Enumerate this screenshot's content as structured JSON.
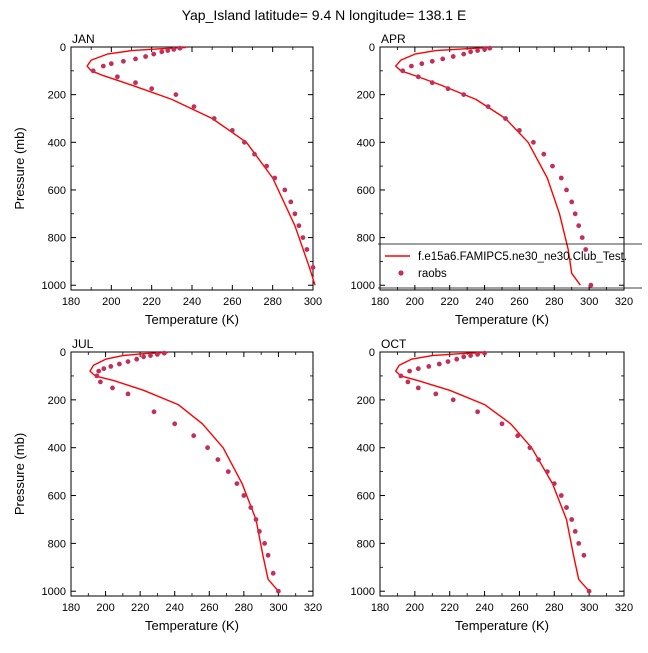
{
  "figure": {
    "title": "Yap_Island  latitude= 9.4 N longitude= 138.1 E"
  },
  "legend": {
    "model_label": "f.e15a6.FAMIPC5.ne30_ne30.Club_Test.",
    "obs_label": "raobs",
    "model_color": "#ff0000",
    "obs_color": "#c0305a"
  },
  "chart_data": [
    {
      "type": "line",
      "title": "JAN",
      "xlabel": "Temperature (K)",
      "ylabel": "Pressure (mb)",
      "xlim": [
        180,
        300
      ],
      "ylim": [
        1020,
        0
      ],
      "xticks": [
        "180",
        "200",
        "220",
        "240",
        "260",
        "280",
        "300"
      ],
      "yticks": [
        "0",
        "200",
        "400",
        "600",
        "800",
        "1000"
      ],
      "model": {
        "t": [
          237,
          225,
          210,
          198,
          190,
          188,
          190,
          196,
          210,
          230,
          250,
          267,
          280,
          291,
          298,
          301
        ],
        "p": [
          2,
          7,
          15,
          30,
          55,
          80,
          100,
          120,
          160,
          220,
          300,
          400,
          550,
          750,
          920,
          1000
        ]
      },
      "obs": {
        "t": [
          234,
          231,
          228,
          225,
          221,
          217,
          212,
          206,
          200,
          196,
          191,
          203,
          212,
          220,
          232,
          241,
          251,
          260,
          266,
          271,
          277,
          281,
          286,
          289,
          291,
          293,
          295,
          297,
          300
        ],
        "p": [
          5,
          10,
          15,
          20,
          30,
          40,
          50,
          60,
          70,
          80,
          100,
          125,
          150,
          175,
          200,
          250,
          300,
          350,
          400,
          450,
          500,
          550,
          600,
          650,
          700,
          750,
          800,
          850,
          925
        ]
      }
    },
    {
      "type": "line",
      "title": "APR",
      "xlabel": "Temperature (K)",
      "ylabel": "",
      "xlim": [
        180,
        320
      ],
      "ylim": [
        1020,
        0
      ],
      "xticks": [
        "180",
        "200",
        "220",
        "240",
        "260",
        "280",
        "300",
        "320"
      ],
      "yticks": [
        "0",
        "200",
        "400",
        "600",
        "800",
        "1000"
      ],
      "model": {
        "t": [
          244,
          230,
          212,
          200,
          192,
          189,
          192,
          200,
          215,
          235,
          252,
          265,
          276,
          283,
          288,
          290,
          295
        ],
        "p": [
          2,
          7,
          15,
          30,
          55,
          80,
          100,
          120,
          160,
          220,
          300,
          400,
          550,
          700,
          850,
          950,
          1000
        ]
      },
      "obs": {
        "t": [
          243,
          240,
          236,
          232,
          228,
          222,
          216,
          210,
          204,
          198,
          193,
          202,
          210,
          219,
          228,
          242,
          252,
          260,
          268,
          274,
          279,
          284,
          287,
          290,
          292,
          294,
          296,
          298,
          301
        ],
        "p": [
          5,
          10,
          15,
          20,
          30,
          40,
          50,
          60,
          70,
          80,
          100,
          125,
          150,
          175,
          200,
          250,
          300,
          350,
          400,
          450,
          500,
          550,
          600,
          650,
          700,
          750,
          800,
          850,
          1000
        ]
      }
    },
    {
      "type": "line",
      "title": "JUL",
      "xlabel": "Temperature (K)",
      "ylabel": "Pressure (mb)",
      "xlim": [
        180,
        320
      ],
      "ylim": [
        1020,
        0
      ],
      "xticks": [
        "180",
        "200",
        "220",
        "240",
        "260",
        "280",
        "300",
        "320"
      ],
      "yticks": [
        "0",
        "200",
        "400",
        "600",
        "800",
        "1000"
      ],
      "model": {
        "t": [
          236,
          222,
          210,
          200,
          193,
          191,
          194,
          205,
          222,
          242,
          256,
          268,
          279,
          287,
          291,
          294,
          300
        ],
        "p": [
          2,
          7,
          15,
          30,
          55,
          80,
          100,
          120,
          160,
          220,
          300,
          400,
          550,
          700,
          850,
          950,
          1000
        ]
      },
      "obs": {
        "t": [
          234,
          230,
          226,
          222,
          218,
          213,
          208,
          203,
          199,
          196,
          195,
          197,
          204,
          213,
          228,
          240,
          251,
          259,
          265,
          271,
          276,
          280,
          284,
          287,
          289,
          292,
          294,
          297,
          300
        ],
        "p": [
          5,
          10,
          15,
          20,
          30,
          40,
          50,
          60,
          70,
          80,
          100,
          125,
          150,
          175,
          250,
          300,
          350,
          400,
          450,
          500,
          550,
          600,
          650,
          700,
          750,
          800,
          850,
          925,
          1000
        ]
      }
    },
    {
      "type": "line",
      "title": "OCT",
      "xlabel": "Temperature (K)",
      "ylabel": "",
      "xlim": [
        180,
        320
      ],
      "ylim": [
        1020,
        0
      ],
      "xticks": [
        "180",
        "200",
        "220",
        "240",
        "260",
        "280",
        "300",
        "320"
      ],
      "yticks": [
        "0",
        "200",
        "400",
        "600",
        "800",
        "1000"
      ],
      "model": {
        "t": [
          240,
          226,
          210,
          198,
          191,
          189,
          192,
          202,
          220,
          240,
          255,
          267,
          279,
          287,
          291,
          294,
          300
        ],
        "p": [
          2,
          7,
          15,
          30,
          55,
          80,
          100,
          120,
          160,
          220,
          300,
          400,
          550,
          700,
          850,
          950,
          1000
        ]
      },
      "obs": {
        "t": [
          240,
          236,
          232,
          228,
          224,
          219,
          214,
          208,
          202,
          197,
          192,
          196,
          202,
          212,
          222,
          236,
          250,
          259,
          266,
          271,
          276,
          280,
          284,
          287,
          290,
          292,
          294,
          297,
          300
        ],
        "p": [
          5,
          10,
          15,
          20,
          30,
          40,
          50,
          60,
          70,
          80,
          100,
          125,
          150,
          175,
          200,
          250,
          300,
          350,
          400,
          450,
          500,
          550,
          600,
          650,
          700,
          750,
          800,
          850,
          1000
        ]
      }
    }
  ]
}
